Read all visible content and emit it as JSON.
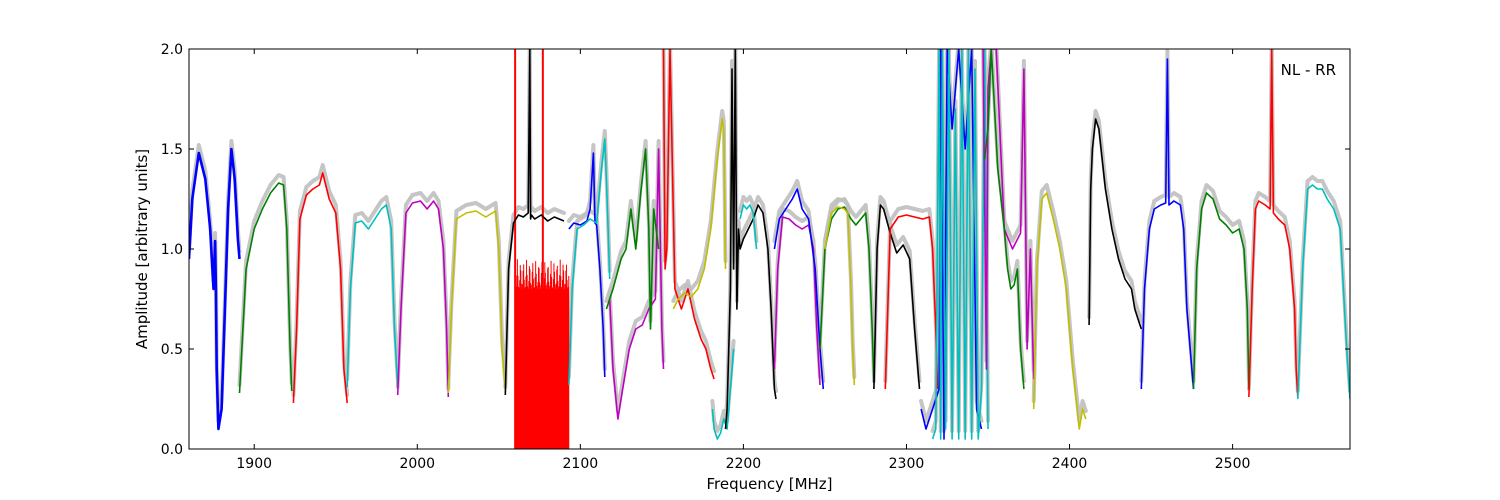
{
  "chart_data": {
    "type": "line",
    "title": "",
    "xlabel": "Frequency [MHz]",
    "ylabel": "Amplitude [arbitrary units]",
    "xlim": [
      1860,
      2572
    ],
    "ylim": [
      0,
      2.0
    ],
    "xticks": [
      1900,
      2000,
      2100,
      2200,
      2300,
      2400,
      2500
    ],
    "yticks": [
      0.0,
      0.5,
      1.0,
      1.5,
      2.0
    ],
    "xtick_labels": [
      "1900",
      "2000",
      "2100",
      "2200",
      "2300",
      "2400",
      "2500"
    ],
    "ytick_labels": [
      "0.0",
      "0.5",
      "1.0",
      "1.5",
      "2.0"
    ],
    "grid": false,
    "legend": false,
    "annotation": "NL - RR",
    "reference_color": "#bfbfbf",
    "series": [
      {
        "color": "#0000ff",
        "x": [
          1860,
          1862,
          1866,
          1870,
          1873,
          1875,
          1876,
          1876.5,
          1877,
          1878,
          1880,
          1882,
          1884,
          1886,
          1888,
          1890,
          1891
        ],
        "y": [
          0.95,
          1.25,
          1.48,
          1.35,
          1.1,
          0.8,
          1.04,
          0.8,
          0.4,
          0.1,
          0.2,
          0.7,
          1.2,
          1.5,
          1.35,
          1.05,
          0.95
        ]
      },
      {
        "color": "#008000",
        "x": [
          1891,
          1895,
          1900,
          1905,
          1910,
          1915,
          1918,
          1920,
          1922,
          1923
        ],
        "y": [
          0.28,
          0.9,
          1.1,
          1.2,
          1.28,
          1.33,
          1.32,
          1.1,
          0.5,
          0.29
        ]
      },
      {
        "color": "#ff0000",
        "x": [
          1924,
          1926,
          1928,
          1932,
          1936,
          1940,
          1942,
          1946,
          1950,
          1953,
          1955,
          1957
        ],
        "y": [
          0.23,
          0.6,
          1.15,
          1.27,
          1.3,
          1.32,
          1.38,
          1.25,
          1.18,
          0.9,
          0.4,
          0.23
        ]
      },
      {
        "color": "#00bfbf",
        "x": [
          1957,
          1959,
          1962,
          1966,
          1970,
          1974,
          1978,
          1981,
          1984,
          1986,
          1988
        ],
        "y": [
          0.31,
          0.8,
          1.13,
          1.14,
          1.1,
          1.15,
          1.2,
          1.22,
          1.1,
          0.6,
          0.31
        ]
      },
      {
        "color": "#bf00bf",
        "x": [
          1988,
          1990,
          1993,
          1997,
          2002,
          2006,
          2010,
          2013,
          2016,
          2018,
          2019
        ],
        "y": [
          0.27,
          0.7,
          1.18,
          1.23,
          1.24,
          1.2,
          1.24,
          1.2,
          1.0,
          0.6,
          0.26
        ]
      },
      {
        "color": "#bfbf00",
        "x": [
          2019,
          2021,
          2024,
          2030,
          2036,
          2042,
          2048,
          2050,
          2052,
          2054
        ],
        "y": [
          0.28,
          0.7,
          1.15,
          1.18,
          1.19,
          1.16,
          1.19,
          1.0,
          0.5,
          0.3
        ]
      },
      {
        "color": "#000000",
        "x": [
          2054,
          2056,
          2059,
          2062,
          2065,
          2068,
          2069,
          2069.5,
          2070,
          2072,
          2076,
          2080,
          2084,
          2087,
          2090
        ],
        "y": [
          0.27,
          0.9,
          1.13,
          1.17,
          1.16,
          1.18,
          2.0,
          1.15,
          1.17,
          1.15,
          1.17,
          1.14,
          1.16,
          1.15,
          1.14
        ]
      },
      {
        "color": "#0000ff",
        "x": [
          2093,
          2096,
          2100,
          2104,
          2106,
          2108,
          2109,
          2110,
          2112,
          2114,
          2115
        ],
        "y": [
          1.1,
          1.13,
          1.12,
          1.14,
          1.2,
          1.48,
          1.13,
          1.12,
          0.9,
          0.6,
          0.36
        ]
      },
      {
        "color": "#00bfbf",
        "x": [
          2093,
          2095,
          2098,
          2102,
          2106,
          2110,
          2113,
          2115,
          2116,
          2117,
          2118
        ],
        "y": [
          0.32,
          0.8,
          1.1,
          1.12,
          1.15,
          1.13,
          1.4,
          1.55,
          1.35,
          1.1,
          0.85
        ]
      },
      {
        "color": "#bf00bf",
        "x": [
          2118,
          2120,
          2123,
          2126,
          2130,
          2134,
          2138,
          2142,
          2146,
          2148,
          2150,
          2151
        ],
        "y": [
          0.75,
          0.4,
          0.15,
          0.3,
          0.5,
          0.6,
          0.62,
          0.7,
          0.75,
          1.5,
          0.6,
          0.4
        ]
      },
      {
        "color": "#008000",
        "x": [
          2116,
          2120,
          2125,
          2128,
          2131,
          2134,
          2137,
          2140,
          2142,
          2143,
          2145,
          2148
        ],
        "y": [
          0.7,
          0.8,
          0.95,
          1.0,
          1.2,
          1.0,
          1.28,
          1.5,
          1.1,
          0.6,
          1.2,
          1.0
        ]
      },
      {
        "color": "#ff0000",
        "x": [
          2151,
          2152,
          2153,
          2155,
          2158,
          2162,
          2166,
          2170,
          2174,
          2177,
          2180,
          2182
        ],
        "y": [
          2.0,
          0.9,
          1.0,
          2.0,
          0.8,
          0.7,
          0.8,
          0.65,
          0.55,
          0.5,
          0.4,
          0.35
        ]
      },
      {
        "color": "#bfbf00",
        "x": [
          2157,
          2160,
          2164,
          2168,
          2172,
          2176,
          2180,
          2184,
          2187,
          2188,
          2189
        ],
        "y": [
          0.7,
          0.75,
          0.78,
          0.76,
          0.8,
          0.9,
          1.1,
          1.45,
          1.65,
          1.6,
          0.9
        ]
      },
      {
        "color": "#00bfbf",
        "x": [
          2181,
          2182,
          2184,
          2186,
          2188,
          2190,
          2192,
          2194
        ],
        "y": [
          0.2,
          0.1,
          0.05,
          0.08,
          0.15,
          0.1,
          0.3,
          0.5
        ]
      },
      {
        "color": "#000000",
        "x": [
          2189,
          2190,
          2192,
          2193,
          2194,
          2195,
          2196,
          2197,
          2198,
          2200,
          2203,
          2206,
          2209,
          2212,
          2215,
          2217,
          2219,
          2220
        ],
        "y": [
          0.1,
          0.2,
          0.8,
          1.9,
          0.9,
          2.0,
          0.7,
          1.1,
          1.0,
          1.05,
          1.1,
          1.15,
          1.22,
          1.18,
          1.0,
          0.7,
          0.3,
          0.25
        ]
      },
      {
        "color": "#00bfbf",
        "x": [
          2198,
          2200,
          2202,
          2204,
          2206,
          2208
        ],
        "y": [
          1.15,
          1.22,
          1.2,
          1.22,
          1.18,
          1.0
        ]
      },
      {
        "color": "#bf00bf",
        "x": [
          2219,
          2221,
          2224,
          2228,
          2232,
          2236,
          2240,
          2243,
          2245,
          2247
        ],
        "y": [
          0.4,
          0.9,
          1.16,
          1.15,
          1.12,
          1.1,
          1.12,
          1.0,
          0.6,
          0.32
        ]
      },
      {
        "color": "#0000ff",
        "x": [
          2219,
          2222,
          2226,
          2230,
          2233,
          2236,
          2240,
          2244,
          2247,
          2249
        ],
        "y": [
          1.0,
          1.15,
          1.2,
          1.25,
          1.3,
          1.2,
          1.15,
          0.9,
          0.5,
          0.3
        ]
      },
      {
        "color": "#008000",
        "x": [
          2247,
          2250,
          2254,
          2258,
          2262,
          2266,
          2269,
          2272,
          2275,
          2277,
          2279,
          2280
        ],
        "y": [
          0.5,
          1.0,
          1.15,
          1.2,
          1.21,
          1.15,
          1.12,
          1.15,
          1.18,
          1.0,
          0.6,
          0.33
        ]
      },
      {
        "color": "#bfbf00",
        "x": [
          2250,
          2254,
          2258,
          2262,
          2264,
          2266,
          2267,
          2268
        ],
        "y": [
          1.0,
          1.18,
          1.21,
          1.2,
          1.18,
          0.8,
          0.5,
          0.32
        ]
      },
      {
        "color": "#000000",
        "x": [
          2280,
          2282,
          2284,
          2286,
          2290,
          2294,
          2298,
          2302,
          2305,
          2308
        ],
        "y": [
          0.3,
          1.0,
          1.22,
          1.2,
          1.08,
          0.98,
          1.02,
          0.95,
          0.6,
          0.3
        ]
      },
      {
        "color": "#ff0000",
        "x": [
          2287,
          2290,
          2295,
          2300,
          2305,
          2310,
          2314,
          2316,
          2318,
          2319
        ],
        "y": [
          0.3,
          1.1,
          1.16,
          1.17,
          1.16,
          1.15,
          1.16,
          1.0,
          0.6,
          0.3
        ]
      },
      {
        "color": "#0000ff",
        "x": [
          2309,
          2312,
          2316,
          2318,
          2320,
          2321,
          2323,
          2325,
          2328,
          2332,
          2336,
          2340,
          2343,
          2346
        ],
        "y": [
          0.2,
          0.1,
          0.2,
          0.25,
          0.3,
          2.0,
          0.05,
          2.0,
          1.6,
          2.0,
          1.5,
          2.0,
          0.2,
          0.1
        ]
      },
      {
        "color": "#00bfbf",
        "x": [
          2316,
          2318,
          2320,
          2321,
          2322,
          2324,
          2326,
          2328,
          2330,
          2332,
          2334,
          2336,
          2338,
          2340,
          2342,
          2344,
          2346,
          2348,
          2350
        ],
        "y": [
          0.05,
          0.1,
          2.0,
          0.05,
          2.0,
          0.1,
          2.0,
          0.05,
          1.7,
          0.05,
          2.0,
          0.05,
          2.0,
          0.05,
          1.9,
          0.05,
          0.3,
          2.0,
          0.1
        ]
      },
      {
        "color": "#bf00bf",
        "x": [
          2347,
          2349,
          2350,
          2352,
          2355,
          2360,
          2365,
          2370,
          2372,
          2374,
          2376,
          2378
        ],
        "y": [
          2.0,
          0.4,
          1.8,
          2.0,
          2.0,
          1.1,
          1.0,
          1.08,
          1.9,
          0.5,
          1.0,
          0.35
        ]
      },
      {
        "color": "#008000",
        "x": [
          2348,
          2350,
          2352,
          2356,
          2360,
          2362,
          2364,
          2366,
          2368,
          2370,
          2372
        ],
        "y": [
          1.45,
          1.6,
          2.0,
          1.4,
          1.1,
          0.9,
          0.8,
          0.82,
          0.9,
          0.5,
          0.3
        ]
      },
      {
        "color": "#bfbf00",
        "x": [
          2378,
          2380,
          2383,
          2386,
          2390,
          2394,
          2398,
          2400,
          2402,
          2404,
          2406,
          2408,
          2410
        ],
        "y": [
          0.2,
          0.9,
          1.25,
          1.28,
          1.15,
          1.0,
          0.8,
          0.6,
          0.4,
          0.25,
          0.1,
          0.2,
          0.15
        ]
      },
      {
        "color": "#000000",
        "x": [
          2412,
          2413,
          2414,
          2416,
          2418,
          2422,
          2426,
          2430,
          2434,
          2438,
          2440,
          2442,
          2444
        ],
        "y": [
          0.62,
          1.3,
          1.5,
          1.65,
          1.6,
          1.3,
          1.1,
          0.95,
          0.85,
          0.8,
          0.7,
          0.65,
          0.6
        ]
      },
      {
        "color": "#0000ff",
        "x": [
          2444,
          2446,
          2449,
          2452,
          2456,
          2459,
          2460,
          2461,
          2464,
          2468,
          2470,
          2472,
          2474,
          2476
        ],
        "y": [
          0.3,
          0.8,
          1.1,
          1.2,
          1.22,
          1.23,
          1.95,
          1.22,
          1.24,
          1.22,
          1.1,
          0.7,
          0.5,
          0.3
        ]
      },
      {
        "color": "#008000",
        "x": [
          2476,
          2478,
          2481,
          2484,
          2488,
          2492,
          2496,
          2500,
          2504,
          2507,
          2509,
          2510
        ],
        "y": [
          0.3,
          0.9,
          1.2,
          1.28,
          1.25,
          1.15,
          1.12,
          1.08,
          1.1,
          1.0,
          0.7,
          0.3
        ]
      },
      {
        "color": "#ff0000",
        "x": [
          2510,
          2512,
          2514,
          2516,
          2520,
          2523,
          2524,
          2525,
          2528,
          2532,
          2535,
          2538,
          2539,
          2540
        ],
        "y": [
          0.26,
          0.8,
          1.2,
          1.24,
          1.22,
          1.2,
          2.0,
          1.18,
          1.15,
          1.12,
          1.0,
          0.7,
          0.4,
          0.26
        ]
      },
      {
        "color": "#00bfbf",
        "x": [
          2540,
          2543,
          2546,
          2549,
          2552,
          2555,
          2558,
          2562,
          2566,
          2570,
          2572
        ],
        "y": [
          0.25,
          0.9,
          1.3,
          1.32,
          1.3,
          1.3,
          1.25,
          1.2,
          1.1,
          0.5,
          0.25
        ]
      }
    ],
    "dense_block": {
      "color": "#ff0000",
      "x_start": 2060,
      "x_end": 2093,
      "y_high": 0.95,
      "spikes_x": [
        2060,
        2077
      ]
    }
  }
}
